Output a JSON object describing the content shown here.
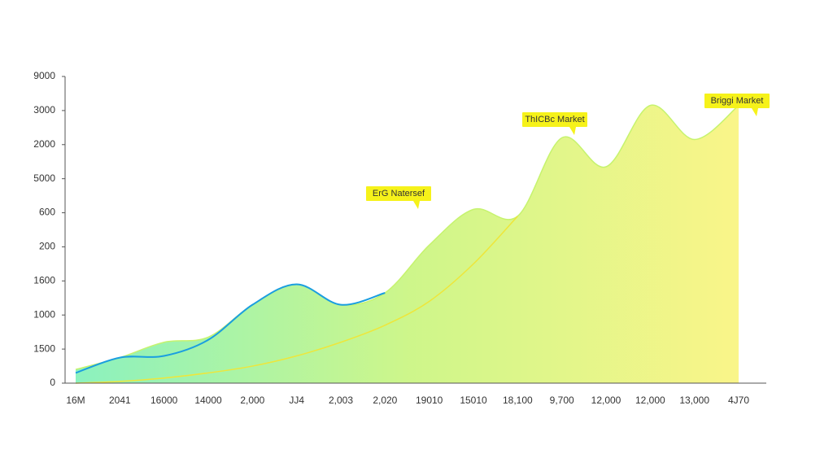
{
  "chart_data": {
    "type": "area",
    "ylabels": [
      "0",
      "1500",
      "1000",
      "1600",
      "200",
      "600",
      "5000",
      "2000",
      "3000",
      "9000"
    ],
    "ylim": [
      0,
      9
    ],
    "categories": [
      "16M",
      "2041",
      "16000",
      "14000",
      "2,000",
      "JJ4",
      "2,003",
      "2,020",
      "19010",
      "15010",
      "18,100",
      "9,700",
      "12,000",
      "12,000",
      "13,000",
      "4J70"
    ],
    "series": [
      {
        "color": "#c6f36e",
        "values": [
          0.4,
          0.75,
          1.2,
          1.35,
          2.3,
          2.9,
          2.3,
          2.65,
          4.05,
          5.1,
          4.9,
          7.2,
          6.35,
          8.15,
          7.15,
          8.15
        ]
      },
      {
        "color": "#1a9ee0",
        "values": [
          0.3,
          0.75,
          0.8,
          1.27,
          2.3,
          2.9,
          2.3,
          2.65,
          null,
          null,
          null,
          null,
          null,
          null,
          null,
          null
        ]
      },
      {
        "color": "#eee63a",
        "values": [
          0,
          0.05,
          0.15,
          0.3,
          0.5,
          0.8,
          1.2,
          1.7,
          2.4,
          3.5,
          4.9,
          null,
          null,
          null,
          null,
          null
        ]
      }
    ],
    "annotations": [
      "ErG Natersef",
      "ThICBc Market",
      "Briggi Market"
    ]
  }
}
